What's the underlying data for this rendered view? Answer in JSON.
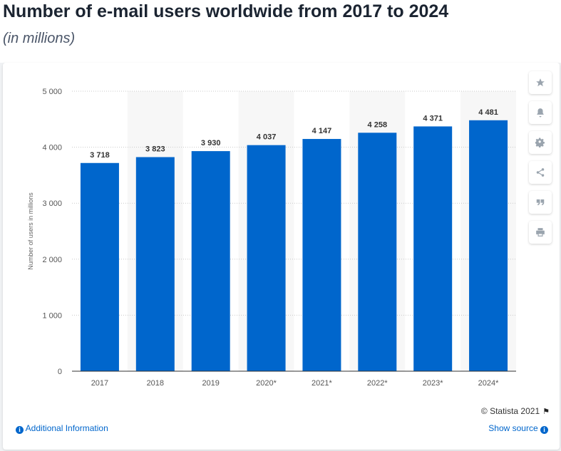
{
  "header": {
    "title": "Number of e-mail users worldwide from 2017 to 2024",
    "subtitle": "(in millions)"
  },
  "chart_data": {
    "type": "bar",
    "categories": [
      "2017",
      "2018",
      "2019",
      "2020*",
      "2021*",
      "2022*",
      "2023*",
      "2024*"
    ],
    "values": [
      3718,
      3823,
      3930,
      4037,
      4147,
      4258,
      4371,
      4481
    ],
    "value_labels": [
      "3 718",
      "3 823",
      "3 930",
      "4 037",
      "4 147",
      "4 258",
      "4 371",
      "4 481"
    ],
    "ylabel": "Number of users in millions",
    "ylim": [
      0,
      5000
    ],
    "yticks": [
      0,
      1000,
      2000,
      3000,
      4000,
      5000
    ],
    "ytick_labels": [
      "0",
      "1 000",
      "2 000",
      "3 000",
      "4 000",
      "5 000"
    ],
    "grid": true,
    "bar_color": "#0066cc",
    "band_color": "#f7f7f7"
  },
  "toolbar": {
    "icons": [
      "star-icon",
      "bell-icon",
      "gear-icon",
      "share-icon",
      "quote-icon",
      "print-icon"
    ]
  },
  "footer": {
    "copyright": "© Statista 2021",
    "additional_info": "Additional Information",
    "show_source": "Show source"
  },
  "colors": {
    "accent": "#0066cc",
    "title": "#1b2431"
  }
}
